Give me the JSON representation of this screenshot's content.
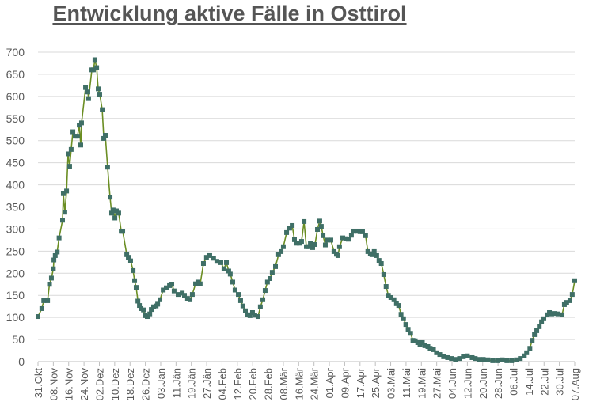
{
  "title": "Entwicklung aktive Fälle in Osttirol",
  "colors": {
    "line": "#6b8e23",
    "marker": "#3f6f66",
    "grid": "#d9d9d9",
    "axis": "#bfbfbf",
    "text": "#595959"
  },
  "chart_data": {
    "type": "line",
    "title": "Entwicklung aktive Fälle in Osttirol",
    "xlabel": "",
    "ylabel": "",
    "ylim": [
      0,
      700
    ],
    "y_ticks": [
      0,
      50,
      100,
      150,
      200,
      250,
      300,
      350,
      400,
      450,
      500,
      550,
      600,
      650,
      700
    ],
    "grid": true,
    "legend": "none",
    "x_unit": "days since 31.Okt",
    "x_range": [
      0,
      280
    ],
    "x_tick_interval_days": 8,
    "categories": [
      "31.Okt",
      "08.Nov",
      "16.Nov",
      "24.Nov",
      "02.Dez",
      "10.Dez",
      "18.Dez",
      "26.Dez",
      "03.Jän",
      "11.Jän",
      "19.Jän",
      "27.Jän",
      "04.Feb",
      "12.Feb",
      "20.Feb",
      "28.Feb",
      "08.Mär",
      "16.Mär",
      "24.Mär",
      "01.Apr",
      "09.Apr",
      "17.Apr",
      "25.Apr",
      "03.Mai",
      "11.Mai",
      "19.Mai",
      "27.Mai",
      "04.Jun",
      "12.Jun",
      "20.Jun",
      "28.Jun",
      "06.Jul",
      "14.Jul",
      "22.Jul",
      "30.Jul",
      "07.Aug"
    ],
    "series": [
      {
        "name": "Aktive Fälle",
        "points": [
          [
            0,
            102
          ],
          [
            2,
            120
          ],
          [
            3,
            138
          ],
          [
            5,
            138
          ],
          [
            6,
            175
          ],
          [
            7,
            189
          ],
          [
            8,
            210
          ],
          [
            8.3,
            230
          ],
          [
            9,
            240
          ],
          [
            10,
            248
          ],
          [
            11,
            280
          ],
          [
            12.8,
            320
          ],
          [
            13.2,
            380
          ],
          [
            14,
            338
          ],
          [
            14.9,
            386
          ],
          [
            15.7,
            470
          ],
          [
            16.5,
            442
          ],
          [
            17.3,
            480
          ],
          [
            18.2,
            520
          ],
          [
            19.4,
            510
          ],
          [
            20.6,
            510
          ],
          [
            21.5,
            535
          ],
          [
            22.3,
            490
          ],
          [
            22.7,
            540
          ],
          [
            24.8,
            620
          ],
          [
            26,
            610
          ],
          [
            26.4,
            595
          ],
          [
            28.1,
            660
          ],
          [
            28.9,
            660
          ],
          [
            29.7,
            683
          ],
          [
            30.6,
            665
          ],
          [
            31.4,
            617
          ],
          [
            32.2,
            605
          ],
          [
            33.5,
            570
          ],
          [
            34.3,
            505
          ],
          [
            35.1,
            512
          ],
          [
            36.3,
            440
          ],
          [
            37.6,
            372
          ],
          [
            38.4,
            336
          ],
          [
            39.2,
            343
          ],
          [
            40.1,
            325
          ],
          [
            40.9,
            341
          ],
          [
            42.1,
            336
          ],
          [
            43.4,
            295
          ],
          [
            44.2,
            295
          ],
          [
            46.3,
            242
          ],
          [
            47.1,
            236
          ],
          [
            48.3,
            228
          ],
          [
            49.6,
            206
          ],
          [
            50.4,
            183
          ],
          [
            51.2,
            168
          ],
          [
            52.1,
            137
          ],
          [
            52.9,
            127
          ],
          [
            53.7,
            120
          ],
          [
            55,
            117
          ],
          [
            55.8,
            104
          ],
          [
            57,
            102
          ],
          [
            58.3,
            108
          ],
          [
            59.1,
            118
          ],
          [
            60.3,
            124
          ],
          [
            61.6,
            126
          ],
          [
            62.4,
            130
          ],
          [
            63.6,
            140
          ],
          [
            65.3,
            162
          ],
          [
            66.9,
            167
          ],
          [
            68.6,
            172
          ],
          [
            69.8,
            175
          ],
          [
            71,
            160
          ],
          [
            73.1,
            152
          ],
          [
            75.2,
            155
          ],
          [
            76.4,
            150
          ],
          [
            78,
            143
          ],
          [
            79.3,
            140
          ],
          [
            80.5,
            152
          ],
          [
            82.2,
            176
          ],
          [
            83.4,
            180
          ],
          [
            84.6,
            176
          ],
          [
            86.3,
            222
          ],
          [
            87.9,
            236
          ],
          [
            89.6,
            240
          ],
          [
            91.6,
            234
          ],
          [
            93.3,
            227
          ],
          [
            95.4,
            224
          ],
          [
            97,
            210
          ],
          [
            98.3,
            224
          ],
          [
            99.5,
            205
          ],
          [
            100.3,
            198
          ],
          [
            101.6,
            180
          ],
          [
            102.8,
            162
          ],
          [
            104.5,
            152
          ],
          [
            105.7,
            138
          ],
          [
            106.9,
            126
          ],
          [
            108.2,
            115
          ],
          [
            109.4,
            106
          ],
          [
            110.6,
            104
          ],
          [
            111.9,
            111
          ],
          [
            113.1,
            105
          ],
          [
            114.8,
            102
          ],
          [
            116,
            124
          ],
          [
            117.3,
            140
          ],
          [
            118.5,
            161
          ],
          [
            119.7,
            180
          ],
          [
            121,
            188
          ],
          [
            122.2,
            202
          ],
          [
            123.9,
            215
          ],
          [
            125.5,
            242
          ],
          [
            126.8,
            249
          ],
          [
            128,
            260
          ],
          [
            129.7,
            292
          ],
          [
            131.3,
            302
          ],
          [
            132.6,
            308
          ],
          [
            133.8,
            276
          ],
          [
            135,
            268
          ],
          [
            136.3,
            268
          ],
          [
            137.5,
            272
          ],
          [
            138.8,
            317
          ],
          [
            140,
            260
          ],
          [
            141.2,
            260
          ],
          [
            142.1,
            268
          ],
          [
            143.3,
            258
          ],
          [
            144.5,
            265
          ],
          [
            145.8,
            299
          ],
          [
            147,
            318
          ],
          [
            147.8,
            306
          ],
          [
            148.7,
            285
          ],
          [
            149.9,
            264
          ],
          [
            151.1,
            275
          ],
          [
            152.8,
            275
          ],
          [
            154.4,
            249
          ],
          [
            155.7,
            243
          ],
          [
            156.5,
            240
          ],
          [
            157.3,
            260
          ],
          [
            159,
            280
          ],
          [
            160.6,
            278
          ],
          [
            161.9,
            277
          ],
          [
            163.5,
            286
          ],
          [
            164.7,
            295
          ],
          [
            166.4,
            295
          ],
          [
            168,
            294
          ],
          [
            169.3,
            294
          ],
          [
            170.9,
            285
          ],
          [
            172.1,
            249
          ],
          [
            173.4,
            244
          ],
          [
            174.2,
            242
          ],
          [
            175.4,
            249
          ],
          [
            176.7,
            240
          ],
          [
            177.9,
            229
          ],
          [
            179.1,
            222
          ],
          [
            180.4,
            197
          ],
          [
            181.6,
            170
          ],
          [
            182.8,
            150
          ],
          [
            184.1,
            145
          ],
          [
            185.7,
            140
          ],
          [
            187,
            131
          ],
          [
            188.2,
            127
          ],
          [
            189.4,
            107
          ],
          [
            190.7,
            97
          ],
          [
            191.9,
            84
          ],
          [
            193.1,
            73
          ],
          [
            194.4,
            64
          ],
          [
            195.6,
            48
          ],
          [
            196.8,
            47
          ],
          [
            198.1,
            43
          ],
          [
            199.3,
            38
          ],
          [
            200.5,
            43
          ],
          [
            201.8,
            36
          ],
          [
            203.4,
            34
          ],
          [
            204.6,
            30
          ],
          [
            206.3,
            27
          ],
          [
            207.9,
            20
          ],
          [
            209.6,
            16
          ],
          [
            211.6,
            11
          ],
          [
            213.7,
            9
          ],
          [
            215.7,
            7
          ],
          [
            217.8,
            5
          ],
          [
            219.9,
            7
          ],
          [
            221.9,
            11
          ],
          [
            224,
            13
          ],
          [
            226.5,
            9
          ],
          [
            228.1,
            7
          ],
          [
            230.2,
            5
          ],
          [
            232.3,
            5
          ],
          [
            234.7,
            4
          ],
          [
            237.2,
            2
          ],
          [
            239.7,
            2
          ],
          [
            242.2,
            4
          ],
          [
            244.6,
            2
          ],
          [
            247.1,
            2
          ],
          [
            249.6,
            4
          ],
          [
            251.6,
            7
          ],
          [
            253.7,
            13
          ],
          [
            254.9,
            20
          ],
          [
            256.6,
            30
          ],
          [
            257.8,
            48
          ],
          [
            259,
            61
          ],
          [
            260.2,
            70
          ],
          [
            261.5,
            79
          ],
          [
            262.7,
            90
          ],
          [
            263.9,
            97
          ],
          [
            265.6,
            106
          ],
          [
            266.8,
            111
          ],
          [
            268,
            108
          ],
          [
            269.3,
            109
          ],
          [
            271.3,
            108
          ],
          [
            273.4,
            106
          ],
          [
            274.6,
            129
          ],
          [
            275.8,
            134
          ],
          [
            277.5,
            138
          ],
          [
            278.7,
            152
          ],
          [
            280,
            183
          ]
        ]
      }
    ]
  }
}
